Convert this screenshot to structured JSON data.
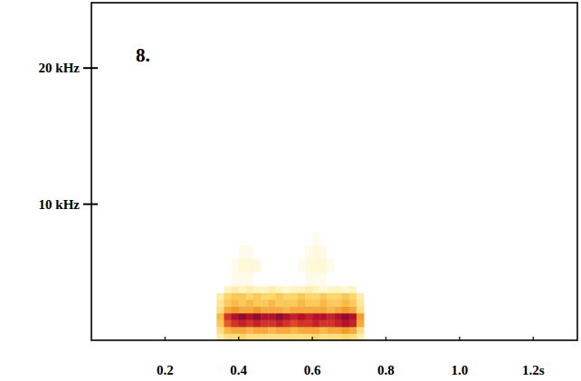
{
  "chart_data": {
    "type": "heatmap",
    "title": "8.",
    "xlim": [
      0,
      1.32
    ],
    "ylim": [
      0,
      24.8
    ],
    "xticks": [
      0.2,
      0.4,
      0.6,
      0.8,
      {
        "value": 1,
        "label": "1.0"
      },
      {
        "value": 1.2,
        "label": "1.2s"
      }
    ],
    "yticks": [
      {
        "value": 10,
        "label": "10 kHz"
      },
      {
        "value": 20,
        "label": "20 kHz"
      }
    ],
    "grid": false,
    "clim": [
      0,
      1
    ],
    "x_bins": [
      0.34,
      0.36,
      0.38,
      0.4,
      0.42,
      0.44,
      0.46,
      0.48,
      0.5,
      0.52,
      0.54,
      0.56,
      0.58,
      0.6,
      0.62,
      0.64,
      0.66,
      0.68,
      0.7,
      0.72,
      0.74
    ],
    "y_bins": [
      0,
      0.5,
      1,
      1.5,
      2,
      2.5,
      3,
      3.5,
      4,
      5,
      6,
      7,
      8
    ],
    "cells": [
      [
        0.2,
        0.3,
        0.3,
        0.35,
        0.3,
        0.3,
        0.3,
        0.3,
        0.3,
        0.3,
        0.3,
        0.3,
        0.3,
        0.35,
        0.3,
        0.3,
        0.3,
        0.35,
        0.3,
        0.2
      ],
      [
        0.3,
        0.45,
        0.5,
        0.5,
        0.45,
        0.5,
        0.5,
        0.45,
        0.5,
        0.5,
        0.45,
        0.5,
        0.5,
        0.5,
        0.45,
        0.5,
        0.5,
        0.55,
        0.5,
        0.3
      ],
      [
        0.4,
        0.7,
        0.8,
        0.85,
        0.8,
        0.85,
        0.8,
        0.8,
        0.85,
        0.8,
        0.75,
        0.8,
        0.8,
        0.85,
        0.8,
        0.8,
        0.85,
        0.9,
        0.85,
        0.5
      ],
      [
        0.45,
        0.8,
        0.9,
        0.95,
        0.9,
        0.95,
        0.9,
        0.9,
        0.95,
        0.9,
        0.85,
        0.9,
        0.85,
        0.9,
        0.9,
        0.85,
        0.9,
        0.95,
        0.9,
        0.55
      ],
      [
        0.3,
        0.5,
        0.55,
        0.5,
        0.5,
        0.55,
        0.5,
        0.5,
        0.5,
        0.45,
        0.5,
        0.5,
        0.5,
        0.5,
        0.5,
        0.45,
        0.5,
        0.55,
        0.5,
        0.3
      ],
      [
        0.25,
        0.4,
        0.45,
        0.4,
        0.45,
        0.4,
        0.4,
        0.45,
        0.4,
        0.4,
        0.4,
        0.45,
        0.4,
        0.4,
        0.45,
        0.4,
        0.4,
        0.45,
        0.4,
        0.25
      ],
      [
        0.2,
        0.35,
        0.4,
        0.4,
        0.35,
        0.4,
        0.35,
        0.35,
        0.4,
        0.35,
        0.35,
        0.4,
        0.35,
        0.35,
        0.4,
        0.35,
        0.35,
        0.4,
        0.35,
        0.2
      ],
      [
        0,
        0.15,
        0.2,
        0.15,
        0.2,
        0.15,
        0.15,
        0.2,
        0.15,
        0.1,
        0.15,
        0.15,
        0.2,
        0.15,
        0.1,
        0.15,
        0.15,
        0.1,
        0.15,
        0
      ],
      [
        0,
        0,
        0.05,
        0.05,
        0.05,
        0,
        0,
        0,
        0,
        0,
        0,
        0,
        0.05,
        0.05,
        0.05,
        0,
        0,
        0,
        0,
        0
      ],
      [
        0,
        0,
        0.05,
        0.1,
        0.1,
        0.08,
        0,
        0,
        0,
        0,
        0,
        0.05,
        0.08,
        0.1,
        0.1,
        0.05,
        0,
        0,
        0,
        0
      ],
      [
        0,
        0,
        0,
        0.05,
        0.05,
        0,
        0,
        0,
        0,
        0,
        0,
        0,
        0.05,
        0.08,
        0.05,
        0,
        0,
        0,
        0,
        0
      ],
      [
        0,
        0,
        0,
        0,
        0,
        0,
        0,
        0,
        0,
        0,
        0,
        0,
        0,
        0.05,
        0,
        0,
        0,
        0,
        0,
        0
      ]
    ]
  }
}
